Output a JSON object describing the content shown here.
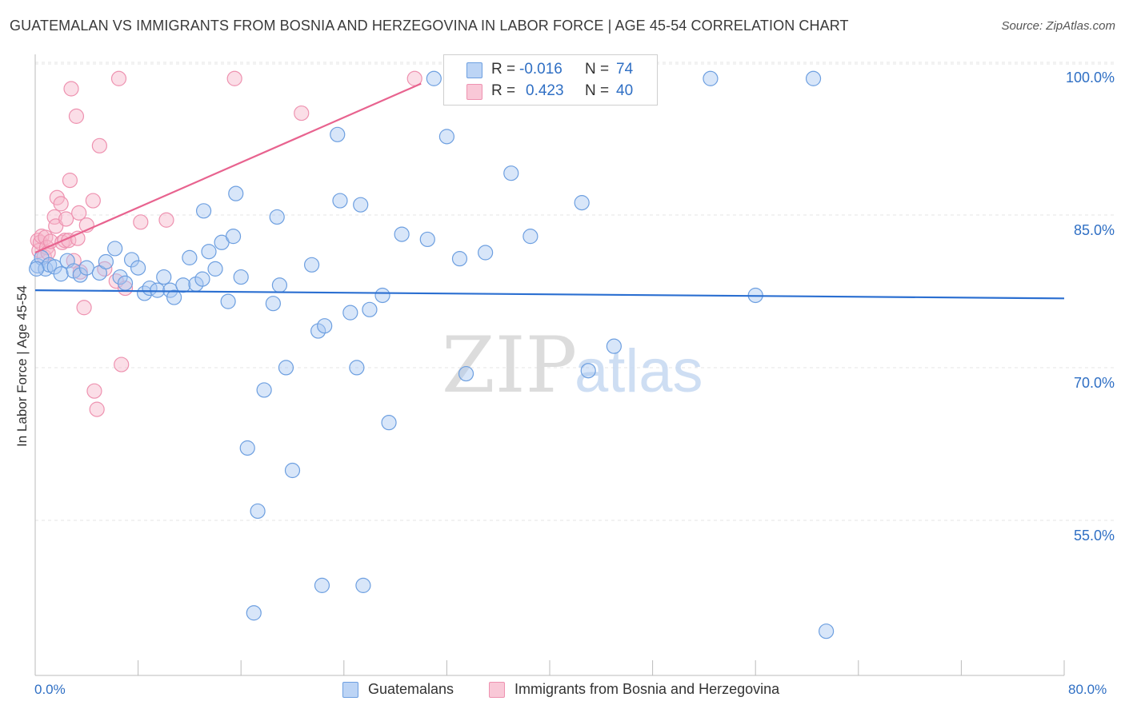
{
  "title": "GUATEMALAN VS IMMIGRANTS FROM BOSNIA AND HERZEGOVINA IN LABOR FORCE | AGE 45-54 CORRELATION CHART",
  "source": "Source: ZipAtlas.com",
  "watermark": {
    "zip": "ZIP",
    "atlas": "atlas"
  },
  "colors": {
    "blue_fill": "#a9c8f2",
    "blue_stroke": "#6d9fe0",
    "blue_line": "#2b6fd1",
    "pink_fill": "#f6b6ca",
    "pink_stroke": "#ee92b0",
    "pink_line": "#e8638f",
    "axis_label": "#2f6fc4",
    "grid": "#e4e4e4"
  },
  "legend": {
    "rows": [
      {
        "r_label": "R =",
        "r_value": "-0.016",
        "n_label": "N =",
        "n_value": "74"
      },
      {
        "r_label": "R =",
        "r_value": "0.423",
        "n_label": "N =",
        "n_value": "40"
      }
    ]
  },
  "bottom_legend": [
    "Guatemalans",
    "Immigrants from Bosnia and Herzegovina"
  ],
  "chart_data": {
    "type": "scatter",
    "xlabel": "",
    "ylabel": "In Labor Force | Age 45-54",
    "xlim": [
      0,
      80
    ],
    "ylim": [
      40,
      102
    ],
    "x_tick_labels": [
      "0.0%",
      "80.0%"
    ],
    "y_ticks": [
      {
        "value": 100,
        "label": "100.0%"
      },
      {
        "value": 85,
        "label": "85.0%"
      },
      {
        "value": 70,
        "label": "70.0%"
      },
      {
        "value": 55,
        "label": "55.0%"
      }
    ],
    "grid": true,
    "series": [
      {
        "name": "Guatemalans",
        "color": "#a9c8f2",
        "trend": {
          "x": [
            0,
            80
          ],
          "y": [
            79.1,
            78.3
          ]
        },
        "points": [
          [
            0.2,
            81.5
          ],
          [
            0.5,
            82.3
          ],
          [
            0.8,
            81.2
          ],
          [
            1.1,
            81.6
          ],
          [
            1.5,
            81.4
          ],
          [
            2.0,
            80.7
          ],
          [
            2.5,
            82.0
          ],
          [
            3.0,
            81.0
          ],
          [
            3.5,
            80.6
          ],
          [
            4.0,
            81.3
          ],
          [
            5.0,
            80.8
          ],
          [
            5.5,
            81.9
          ],
          [
            6.2,
            83.2
          ],
          [
            6.6,
            80.4
          ],
          [
            7.0,
            79.8
          ],
          [
            7.5,
            82.1
          ],
          [
            8.0,
            81.3
          ],
          [
            8.5,
            78.8
          ],
          [
            8.9,
            79.3
          ],
          [
            9.5,
            79.1
          ],
          [
            10.0,
            80.4
          ],
          [
            10.5,
            79.1
          ],
          [
            10.8,
            78.4
          ],
          [
            11.5,
            79.6
          ],
          [
            12.0,
            82.3
          ],
          [
            12.5,
            79.7
          ],
          [
            13.0,
            80.2
          ],
          [
            13.1,
            86.9
          ],
          [
            13.5,
            82.9
          ],
          [
            14.0,
            81.2
          ],
          [
            14.5,
            83.8
          ],
          [
            15.0,
            78.0
          ],
          [
            15.4,
            84.4
          ],
          [
            15.6,
            88.6
          ],
          [
            16.0,
            80.4
          ],
          [
            16.5,
            63.6
          ],
          [
            17.0,
            47.4
          ],
          [
            17.3,
            57.4
          ],
          [
            17.8,
            69.3
          ],
          [
            18.5,
            77.8
          ],
          [
            18.8,
            86.3
          ],
          [
            19.0,
            79.6
          ],
          [
            19.5,
            71.5
          ],
          [
            20.0,
            61.4
          ],
          [
            21.5,
            81.6
          ],
          [
            22.0,
            75.1
          ],
          [
            22.3,
            50.1
          ],
          [
            22.5,
            75.6
          ],
          [
            23.5,
            94.4
          ],
          [
            23.7,
            87.9
          ],
          [
            24.5,
            76.9
          ],
          [
            25.0,
            71.5
          ],
          [
            25.3,
            87.5
          ],
          [
            25.5,
            50.1
          ],
          [
            26.0,
            77.2
          ],
          [
            27.0,
            78.6
          ],
          [
            27.5,
            66.1
          ],
          [
            28.5,
            84.6
          ],
          [
            30.5,
            84.1
          ],
          [
            31.0,
            99.9
          ],
          [
            32.0,
            94.2
          ],
          [
            33.0,
            82.2
          ],
          [
            33.5,
            70.9
          ],
          [
            35.0,
            82.8
          ],
          [
            37.0,
            90.6
          ],
          [
            38.5,
            84.4
          ],
          [
            42.5,
            87.7
          ],
          [
            43.0,
            71.2
          ],
          [
            45.0,
            73.6
          ],
          [
            52.5,
            99.9
          ],
          [
            56.0,
            78.6
          ],
          [
            60.5,
            99.9
          ],
          [
            61.5,
            45.6
          ],
          [
            0.1,
            81.2
          ]
        ]
      },
      {
        "name": "Immigrants from Bosnia and Herzegovina",
        "color": "#f6b6ca",
        "trend": {
          "x": [
            0,
            30
          ],
          "y": [
            82.8,
            99.4
          ]
        },
        "points": [
          [
            0.2,
            84.0
          ],
          [
            0.3,
            83.0
          ],
          [
            0.4,
            83.8
          ],
          [
            0.5,
            84.4
          ],
          [
            0.7,
            82.4
          ],
          [
            0.8,
            84.3
          ],
          [
            0.9,
            83.3
          ],
          [
            1.0,
            82.8
          ],
          [
            1.2,
            83.9
          ],
          [
            1.5,
            86.3
          ],
          [
            1.6,
            85.4
          ],
          [
            1.7,
            88.2
          ],
          [
            2.0,
            87.6
          ],
          [
            2.1,
            83.8
          ],
          [
            2.3,
            84.0
          ],
          [
            2.4,
            86.1
          ],
          [
            2.6,
            84.0
          ],
          [
            2.7,
            89.9
          ],
          [
            2.8,
            98.9
          ],
          [
            3.0,
            82.0
          ],
          [
            3.2,
            96.2
          ],
          [
            3.3,
            84.2
          ],
          [
            3.4,
            86.7
          ],
          [
            3.5,
            80.9
          ],
          [
            3.8,
            77.4
          ],
          [
            4.0,
            85.5
          ],
          [
            4.5,
            87.9
          ],
          [
            4.6,
            69.2
          ],
          [
            4.8,
            67.4
          ],
          [
            5.0,
            93.3
          ],
          [
            5.4,
            81.2
          ],
          [
            6.3,
            80.0
          ],
          [
            6.5,
            99.9
          ],
          [
            6.7,
            71.8
          ],
          [
            7.0,
            79.3
          ],
          [
            8.2,
            85.8
          ],
          [
            10.2,
            86.0
          ],
          [
            15.5,
            99.9
          ],
          [
            20.7,
            96.5
          ],
          [
            29.5,
            99.9
          ]
        ]
      }
    ]
  }
}
